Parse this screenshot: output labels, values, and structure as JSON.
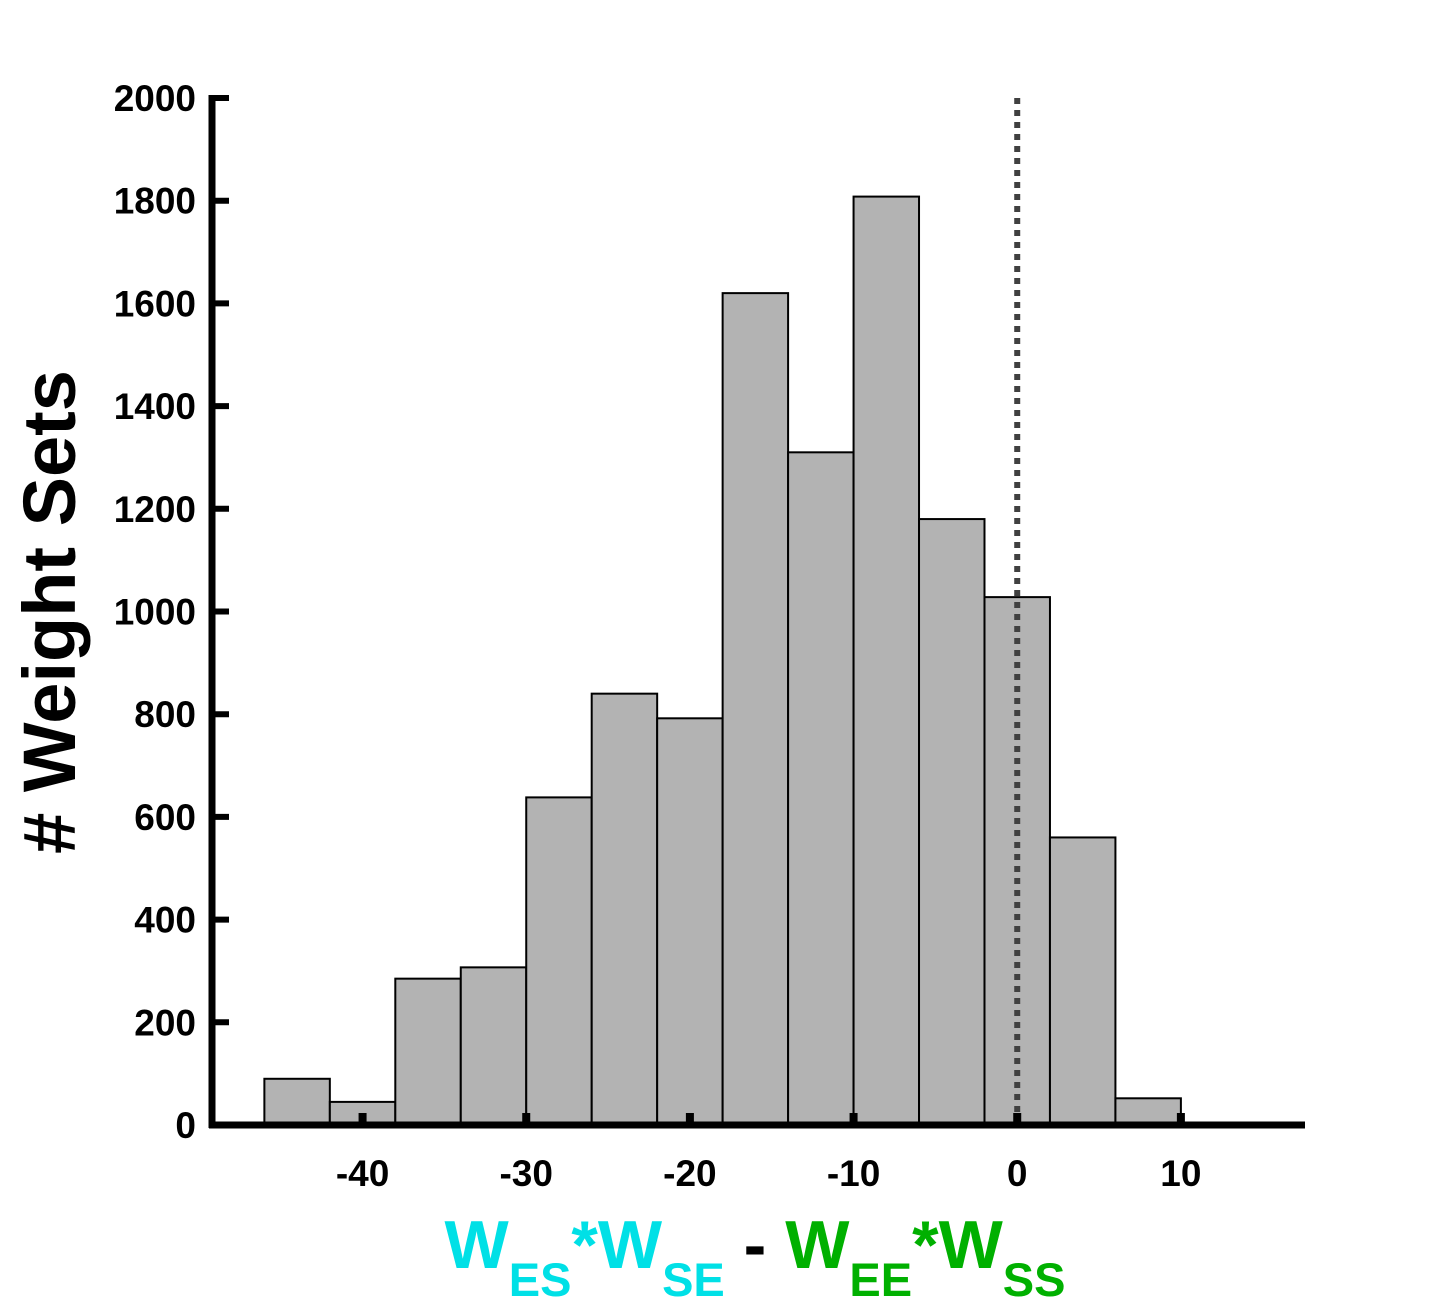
{
  "colors": {
    "bar_fill": "#b3b3b3",
    "bar_stroke": "#000000",
    "axis": "#000000",
    "ref_line": "#404040",
    "cyan": "#00e0e6",
    "green": "#00b000",
    "black": "#000000"
  },
  "chart_data": {
    "type": "bar",
    "ylabel": "# Weight Sets",
    "xlabel_parts": [
      {
        "text": "W",
        "style": "main",
        "color": "cyan"
      },
      {
        "text": "ES",
        "style": "sub",
        "color": "cyan"
      },
      {
        "text": "*W",
        "style": "main",
        "color": "cyan"
      },
      {
        "text": "SE",
        "style": "sub",
        "color": "cyan"
      },
      {
        "text": " - ",
        "style": "main",
        "color": "black"
      },
      {
        "text": "W",
        "style": "main",
        "color": "green"
      },
      {
        "text": "EE",
        "style": "sub",
        "color": "green"
      },
      {
        "text": "*W",
        "style": "main",
        "color": "green"
      },
      {
        "text": "SS",
        "style": "sub",
        "color": "green"
      }
    ],
    "xlim": [
      -49.2,
      17.4
    ],
    "ylim": [
      0,
      2000
    ],
    "xticks": [
      -40,
      -30,
      -20,
      -10,
      0,
      10
    ],
    "yticks": [
      0,
      200,
      400,
      600,
      800,
      1000,
      1200,
      1400,
      1600,
      1800,
      2000
    ],
    "bin_width": 4,
    "bins": [
      {
        "left": -46,
        "value": 90
      },
      {
        "left": -42,
        "value": 45
      },
      {
        "left": -38,
        "value": 285
      },
      {
        "left": -34,
        "value": 307
      },
      {
        "left": -30,
        "value": 638
      },
      {
        "left": -26,
        "value": 840
      },
      {
        "left": -22,
        "value": 792
      },
      {
        "left": -18,
        "value": 1620
      },
      {
        "left": -14,
        "value": 1310
      },
      {
        "left": -10,
        "value": 1808
      },
      {
        "left": -6,
        "value": 1180
      },
      {
        "left": -2,
        "value": 1028
      },
      {
        "left": 2,
        "value": 560
      },
      {
        "left": 6,
        "value": 52
      },
      {
        "left": 10,
        "value": 2
      }
    ],
    "reference_line_x": 0,
    "grid": false,
    "legend": "none"
  }
}
